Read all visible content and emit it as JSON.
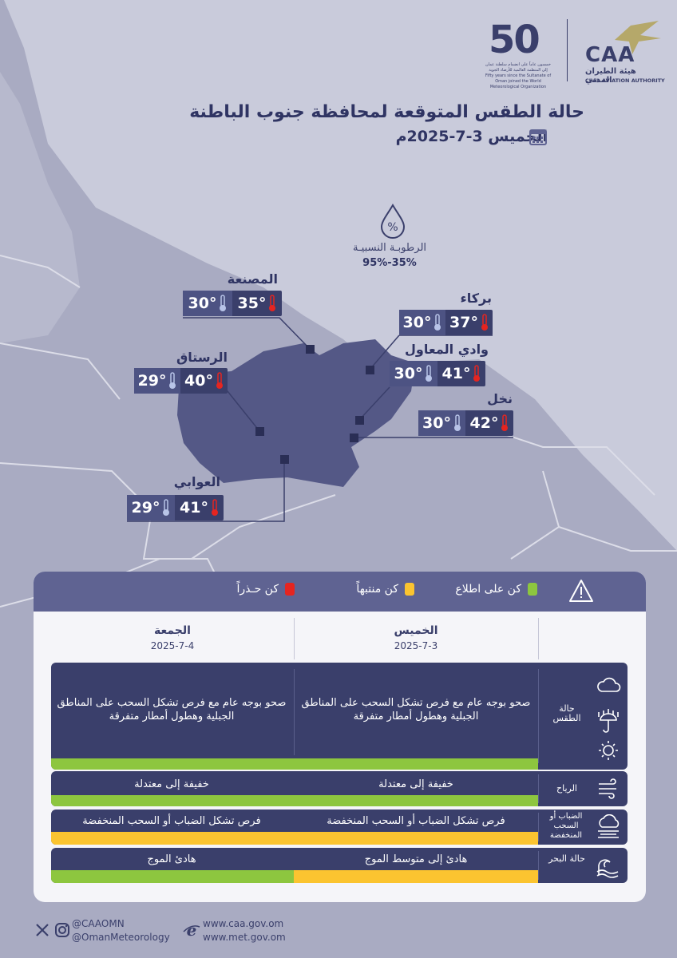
{
  "header": {
    "title": "حالة الطقس المتوقعة لمحافظة جنوب الباطنة",
    "date": "الخميس 3-7-2025م",
    "caa_name_en": "CAA",
    "caa_name_ar": "هيئة الطيران المدني",
    "caa_name_full_en": "CIVIL AVIATION AUTHORITY",
    "anniv_number": "50",
    "anniv_text_ar": "خمسون عاماً على انضمام سلطنة عمان إلى المنظمة العالمية للأرصاد الجوية",
    "anniv_text_en": "Fifty years since the Sultanate of Oman joined the World Meteorological Organization"
  },
  "humidity": {
    "label": "الرطوبـة النسبيـة",
    "value": "95%-35%",
    "icon": "humidity-drop-icon"
  },
  "cities": [
    {
      "name": "المصنعة",
      "max": "35°",
      "min": "30°"
    },
    {
      "name": "بركاء",
      "max": "37°",
      "min": "30°"
    },
    {
      "name": "الرستاق",
      "max": "40°",
      "min": "29°"
    },
    {
      "name": "وادي المعاول",
      "max": "41°",
      "min": "30°"
    },
    {
      "name": "نخل",
      "max": "42°",
      "min": "30°"
    },
    {
      "name": "العوابي",
      "max": "41°",
      "min": "29°"
    }
  ],
  "legend": {
    "green": "كن على اطلاع",
    "yellow": "كن منتبهاً",
    "red": "كن حـذراً",
    "colors": {
      "green": "#8dc63f",
      "yellow": "#fbc430",
      "red": "#e52520"
    }
  },
  "days": [
    {
      "day": "الخميس",
      "date": "2025-7-3"
    },
    {
      "day": "الجمعة",
      "date": "2025-7-4"
    }
  ],
  "rows": [
    {
      "label": "حالة الطقس",
      "thu": "صحو بوجه عام مع فرص تشكل السحب على المناطق الجبلية وهطول أمطار متفرقة",
      "fri": "صحو بوجه عام مع فرص تشكل السحب على المناطق الجبلية وهطول أمطار متفرقة",
      "thu_level": "green",
      "fri_level": "green"
    },
    {
      "label": "الرياح",
      "thu": "خفيفة إلى معتدلة",
      "fri": "خفيفة إلى معتدلة",
      "thu_level": "green",
      "fri_level": "green"
    },
    {
      "label": "الضباب أو السحب المنخفضة",
      "thu": "فرص تشكل الضباب أو السحب المنخفضة",
      "fri": "فرص تشكل الضباب أو السحب المنخفضة",
      "thu_level": "yellow",
      "fri_level": "yellow"
    },
    {
      "label": "حالة البحر",
      "thu": "هادئ إلى متوسط الموج",
      "fri": "هادئ الموج",
      "thu_level": "yellow",
      "fri_level": "green"
    }
  ],
  "footer": {
    "handle1": "@CAAOMN",
    "handle2": "@OmanMeteorology",
    "site1": "www.caa.gov.om",
    "site2": "www.met.gov.om"
  }
}
